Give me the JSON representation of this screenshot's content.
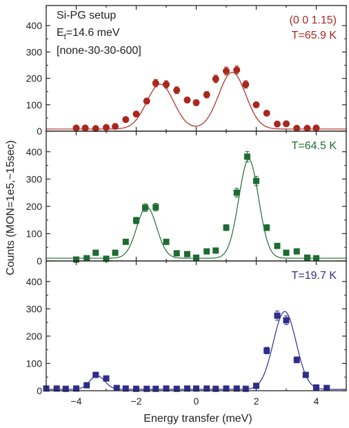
{
  "chart_data": {
    "type": "scatter",
    "layout": "stacked-panels",
    "xlabel": "Energy transfer (meV)",
    "ylabel": "Counts (MON=1e5,~15sec)",
    "xlim": [
      -5,
      5
    ],
    "xticks": [
      -4,
      -2,
      0,
      2,
      4
    ],
    "ylim": [
      0,
      450
    ],
    "yticks": [
      0,
      100,
      200,
      300,
      400
    ],
    "setup_info": {
      "line1": "Si-PG setup",
      "line2_main": "E",
      "line2_sub": "f",
      "line2_rest": "=14.6 meV",
      "line3": "[none-30-30-600]"
    },
    "panels": [
      {
        "label_lines": [
          "(0 0 1.15)",
          "T=65.9 K"
        ],
        "color": "#a8281e",
        "marker": "circle",
        "points": [
          {
            "x": -4.0,
            "y": 12,
            "err": 4
          },
          {
            "x": -3.7,
            "y": 12,
            "err": 4
          },
          {
            "x": -3.35,
            "y": 10,
            "err": 4
          },
          {
            "x": -3.0,
            "y": 14,
            "err": 5
          },
          {
            "x": -2.7,
            "y": 18,
            "err": 5
          },
          {
            "x": -2.35,
            "y": 44,
            "err": 7
          },
          {
            "x": -2.0,
            "y": 65,
            "err": 9
          },
          {
            "x": -1.65,
            "y": 114,
            "err": 11
          },
          {
            "x": -1.35,
            "y": 182,
            "err": 14
          },
          {
            "x": -1.0,
            "y": 177,
            "err": 14
          },
          {
            "x": -0.65,
            "y": 155,
            "err": 13
          },
          {
            "x": -0.3,
            "y": 118,
            "err": 11
          },
          {
            "x": 0.0,
            "y": 108,
            "err": 11
          },
          {
            "x": 0.35,
            "y": 138,
            "err": 12
          },
          {
            "x": 0.65,
            "y": 198,
            "err": 14
          },
          {
            "x": 1.0,
            "y": 228,
            "err": 15
          },
          {
            "x": 1.35,
            "y": 232,
            "err": 15
          },
          {
            "x": 1.65,
            "y": 177,
            "err": 14
          },
          {
            "x": 2.0,
            "y": 100,
            "err": 10
          },
          {
            "x": 2.35,
            "y": 68,
            "err": 9
          },
          {
            "x": 2.7,
            "y": 27,
            "err": 6
          },
          {
            "x": 3.0,
            "y": 28,
            "err": 6
          },
          {
            "x": 3.35,
            "y": 11,
            "err": 4
          },
          {
            "x": 3.7,
            "y": 11,
            "err": 4
          },
          {
            "x": 4.0,
            "y": 12,
            "err": 4
          }
        ],
        "fit": {
          "baseline": 8,
          "peaks": [
            {
              "center": -1.2,
              "amp": 170,
              "sigma": 0.45
            },
            {
              "center": 1.2,
              "amp": 215,
              "sigma": 0.45
            }
          ]
        }
      },
      {
        "label_lines": [
          "T=64.5 K"
        ],
        "color": "#1e6b32",
        "marker": "square",
        "points": [
          {
            "x": -4.0,
            "y": 5,
            "err": 3
          },
          {
            "x": -3.65,
            "y": 10,
            "err": 4
          },
          {
            "x": -3.35,
            "y": 30,
            "err": 6
          },
          {
            "x": -3.0,
            "y": 8,
            "err": 4
          },
          {
            "x": -2.7,
            "y": 30,
            "err": 6
          },
          {
            "x": -2.35,
            "y": 70,
            "err": 9
          },
          {
            "x": -2.0,
            "y": 148,
            "err": 12
          },
          {
            "x": -1.7,
            "y": 195,
            "err": 14
          },
          {
            "x": -1.35,
            "y": 197,
            "err": 14
          },
          {
            "x": -1.0,
            "y": 70,
            "err": 9
          },
          {
            "x": -0.65,
            "y": 28,
            "err": 6
          },
          {
            "x": -0.3,
            "y": 25,
            "err": 6
          },
          {
            "x": 0.0,
            "y": 12,
            "err": 4
          },
          {
            "x": 0.35,
            "y": 35,
            "err": 6
          },
          {
            "x": 0.65,
            "y": 38,
            "err": 6
          },
          {
            "x": 1.0,
            "y": 122,
            "err": 11
          },
          {
            "x": 1.35,
            "y": 250,
            "err": 16
          },
          {
            "x": 1.7,
            "y": 382,
            "err": 19
          },
          {
            "x": 2.0,
            "y": 293,
            "err": 17
          },
          {
            "x": 2.35,
            "y": 122,
            "err": 11
          },
          {
            "x": 2.7,
            "y": 55,
            "err": 7
          },
          {
            "x": 3.0,
            "y": 30,
            "err": 6
          },
          {
            "x": 3.35,
            "y": 35,
            "err": 6
          },
          {
            "x": 3.7,
            "y": 12,
            "err": 4
          },
          {
            "x": 4.0,
            "y": 10,
            "err": 4
          }
        ],
        "fit": {
          "baseline": 10,
          "peaks": [
            {
              "center": -1.65,
              "amp": 188,
              "sigma": 0.33
            },
            {
              "center": 1.75,
              "amp": 362,
              "sigma": 0.33
            }
          ]
        }
      },
      {
        "label_lines": [
          "T=19.7 K"
        ],
        "color": "#2e2d8c",
        "marker": "square",
        "points": [
          {
            "x": -5.0,
            "y": 8,
            "err": 3
          },
          {
            "x": -4.65,
            "y": 8,
            "err": 3
          },
          {
            "x": -4.35,
            "y": 7,
            "err": 3
          },
          {
            "x": -4.0,
            "y": 8,
            "err": 3
          },
          {
            "x": -3.65,
            "y": 20,
            "err": 5
          },
          {
            "x": -3.35,
            "y": 58,
            "err": 8
          },
          {
            "x": -3.0,
            "y": 45,
            "err": 7
          },
          {
            "x": -2.65,
            "y": 10,
            "err": 3
          },
          {
            "x": -2.35,
            "y": 8,
            "err": 3
          },
          {
            "x": -2.0,
            "y": 7,
            "err": 3
          },
          {
            "x": -1.65,
            "y": 7,
            "err": 3
          },
          {
            "x": -1.35,
            "y": 7,
            "err": 3
          },
          {
            "x": -1.0,
            "y": 8,
            "err": 3
          },
          {
            "x": -0.65,
            "y": 7,
            "err": 3
          },
          {
            "x": -0.3,
            "y": 8,
            "err": 3
          },
          {
            "x": 0.0,
            "y": 8,
            "err": 3
          },
          {
            "x": 0.35,
            "y": 8,
            "err": 3
          },
          {
            "x": 0.65,
            "y": 7,
            "err": 3
          },
          {
            "x": 1.0,
            "y": 8,
            "err": 3
          },
          {
            "x": 1.35,
            "y": 8,
            "err": 3
          },
          {
            "x": 1.65,
            "y": 7,
            "err": 3
          },
          {
            "x": 2.0,
            "y": 18,
            "err": 5
          },
          {
            "x": 2.35,
            "y": 147,
            "err": 12
          },
          {
            "x": 2.7,
            "y": 275,
            "err": 17
          },
          {
            "x": 3.0,
            "y": 258,
            "err": 16
          },
          {
            "x": 3.35,
            "y": 113,
            "err": 11
          },
          {
            "x": 3.65,
            "y": 58,
            "err": 8
          },
          {
            "x": 4.0,
            "y": 12,
            "err": 4
          },
          {
            "x": 4.35,
            "y": 10,
            "err": 3
          }
        ],
        "fit": {
          "baseline": 5,
          "peaks": [
            {
              "center": -3.3,
              "amp": 50,
              "sigma": 0.25
            },
            {
              "center": 2.95,
              "amp": 285,
              "sigma": 0.38
            }
          ]
        }
      }
    ]
  }
}
